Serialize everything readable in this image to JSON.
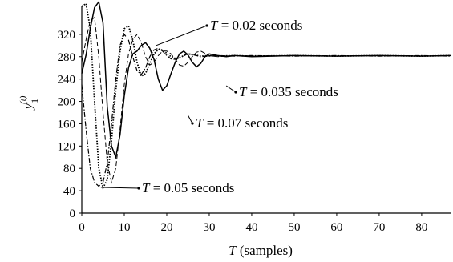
{
  "chart_data": {
    "type": "line",
    "xlabel": "T (samples)",
    "xlabel_var": "T",
    "xlabel_rest": " (samples)",
    "ylabel_base": "y",
    "ylabel_sub": "1",
    "ylabel_sup": "(t)",
    "xlim": [
      0,
      87
    ],
    "ylim": [
      0,
      370
    ],
    "xticks": [
      0,
      10,
      20,
      30,
      40,
      50,
      60,
      70,
      80
    ],
    "yticks": [
      0,
      40,
      80,
      120,
      160,
      200,
      240,
      280,
      320
    ],
    "grid": false,
    "series": [
      {
        "name": "T = 0.02 seconds",
        "color": "#000000",
        "x": [
          0,
          1,
          2,
          3,
          4,
          5,
          6,
          7,
          8,
          9,
          10,
          11,
          12,
          13,
          14,
          15,
          16,
          17,
          18,
          19,
          20,
          21,
          22,
          23,
          24,
          25,
          26,
          27,
          28,
          29,
          30,
          32,
          34,
          36,
          40,
          50,
          60,
          70,
          80,
          87
        ],
        "y": [
          250,
          283,
          330,
          368,
          378,
          340,
          190,
          120,
          100,
          140,
          210,
          260,
          285,
          290,
          300,
          305,
          295,
          275,
          240,
          220,
          228,
          250,
          270,
          285,
          290,
          283,
          270,
          262,
          268,
          280,
          285,
          282,
          280,
          282,
          280,
          282,
          281,
          282,
          281,
          282
        ]
      },
      {
        "name": "T = 0.035 seconds",
        "color": "#000000",
        "x": [
          0,
          1,
          2,
          3,
          4,
          5,
          6,
          7,
          8,
          9,
          10,
          11,
          12,
          13,
          14,
          15,
          16,
          17,
          18,
          19,
          20,
          21,
          22,
          23,
          24,
          25,
          26,
          27,
          28,
          29,
          30,
          32,
          34,
          36,
          40,
          50,
          60,
          70,
          80,
          87
        ],
        "y": [
          270,
          310,
          345,
          350,
          280,
          180,
          90,
          55,
          80,
          150,
          230,
          285,
          310,
          320,
          305,
          280,
          265,
          270,
          282,
          290,
          290,
          285,
          275,
          265,
          263,
          270,
          280,
          288,
          290,
          286,
          282,
          280,
          281,
          282,
          281,
          282,
          281,
          282,
          281,
          282
        ]
      },
      {
        "name": "T = 0.07 seconds",
        "color": "#000000",
        "x": [
          0,
          1,
          2,
          3,
          4,
          5,
          6,
          7,
          8,
          9,
          10,
          11,
          12,
          13,
          14,
          15,
          16,
          17,
          18,
          19,
          20,
          21,
          22,
          23,
          24,
          25,
          26,
          27,
          28,
          30,
          32,
          36,
          40,
          50,
          60,
          70,
          80,
          87
        ],
        "y": [
          230,
          150,
          80,
          55,
          48,
          55,
          90,
          160,
          240,
          300,
          320,
          310,
          280,
          255,
          248,
          260,
          280,
          292,
          295,
          290,
          282,
          276,
          275,
          278,
          282,
          285,
          284,
          282,
          280,
          281,
          282,
          281,
          282,
          281,
          282,
          281,
          282,
          281
        ]
      },
      {
        "name": "T = 0.05 seconds",
        "color": "#000000",
        "x": [
          0,
          1,
          2,
          3,
          4,
          5,
          6,
          7,
          8,
          9,
          10,
          11,
          12,
          13,
          14,
          15,
          16,
          17,
          18,
          19,
          20,
          21,
          22,
          23,
          24,
          25,
          26,
          28,
          30,
          32,
          36,
          40,
          50,
          60,
          70,
          80,
          87
        ],
        "y": [
          370,
          375,
          330,
          200,
          80,
          45,
          60,
          130,
          220,
          290,
          330,
          335,
          310,
          270,
          245,
          250,
          268,
          285,
          293,
          292,
          286,
          280,
          277,
          278,
          282,
          285,
          284,
          281,
          282,
          281,
          282,
          281,
          282,
          281,
          282,
          281,
          282
        ]
      }
    ],
    "annotations": [
      {
        "label_var": "T",
        "label_rest": " = 0.02 seconds",
        "point": [
          17.5,
          300
        ]
      },
      {
        "label_var": "T",
        "label_rest": " = 0.035 seconds",
        "point": [
          34,
          228
        ]
      },
      {
        "label_var": "T",
        "label_rest": " = 0.07 seconds",
        "point": [
          25,
          175
        ]
      },
      {
        "label_var": "T",
        "label_rest": " = 0.05 seconds",
        "point": [
          4.5,
          46
        ]
      }
    ]
  }
}
